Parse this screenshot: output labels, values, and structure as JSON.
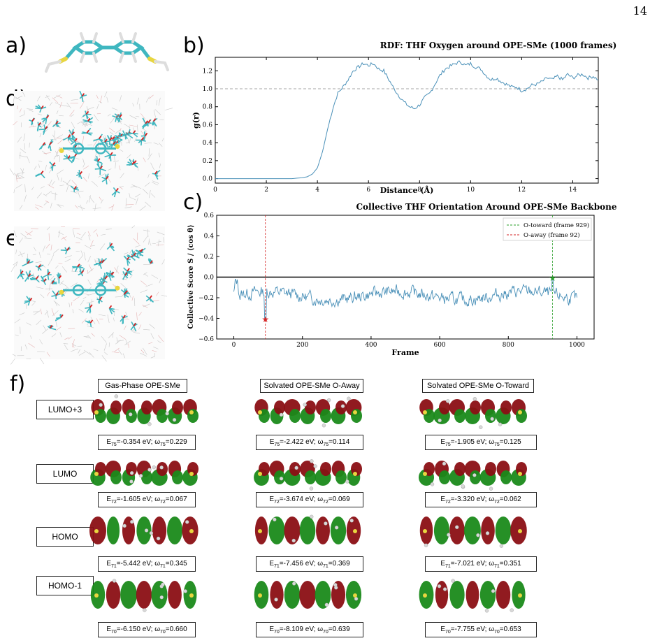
{
  "page_number": "14",
  "panel_letters": {
    "a": "a)",
    "b": "b)",
    "c": "c)",
    "d": "d)",
    "e": "e)",
    "f": "f)"
  },
  "colors": {
    "line": "#4a90b8",
    "reference": "#888888",
    "toward": "#2ca02c",
    "away": "#d62728",
    "carbon": "#3fb7c0",
    "sulfur": "#e8d640",
    "oxygen": "#d62020"
  },
  "chart_data": [
    {
      "type": "line",
      "title": "RDF: THF Oxygen around OPE-SMe (1000 frames)",
      "xlabel": "Distance (Å)",
      "ylabel": "g(r)",
      "xlim": [
        0,
        15
      ],
      "ylim": [
        -0.05,
        1.35
      ],
      "xticks": [
        "0",
        "2",
        "4",
        "6",
        "8",
        "10",
        "12",
        "14"
      ],
      "yticks": [
        "0.0",
        "0.2",
        "0.4",
        "0.6",
        "0.8",
        "1.0",
        "1.2"
      ],
      "reference_line_y": 1.0,
      "grid": false,
      "series": [
        {
          "x": [
            0,
            1,
            2,
            3,
            3.4,
            3.6,
            3.8,
            4.0,
            4.2,
            4.4,
            4.6,
            4.8,
            5.0,
            5.2,
            5.4,
            5.6,
            5.8,
            6.0,
            6.2,
            6.4,
            6.6,
            6.8,
            7.0,
            7.2,
            7.4,
            7.6,
            7.8,
            8.0,
            8.2,
            8.4,
            8.6,
            8.8,
            9.0,
            9.2,
            9.4,
            9.6,
            9.8,
            10.0,
            10.2,
            10.4,
            10.6,
            10.8,
            11.0,
            11.2,
            11.4,
            11.6,
            11.8,
            12.0,
            12.2,
            12.4,
            12.6,
            12.8,
            13.0,
            13.2,
            13.4,
            13.6,
            13.8,
            14.0,
            14.2,
            14.4,
            14.6,
            14.8,
            15.0
          ],
          "y": [
            0,
            0,
            0,
            0,
            0.01,
            0.02,
            0.05,
            0.12,
            0.3,
            0.55,
            0.78,
            0.95,
            1.02,
            1.1,
            1.2,
            1.24,
            1.28,
            1.26,
            1.28,
            1.22,
            1.2,
            1.1,
            1.0,
            0.92,
            0.85,
            0.8,
            0.78,
            0.82,
            0.9,
            0.95,
            1.05,
            1.15,
            1.22,
            1.25,
            1.28,
            1.3,
            1.26,
            1.28,
            1.24,
            1.22,
            1.15,
            1.1,
            1.12,
            1.08,
            1.05,
            1.02,
            1.02,
            0.98,
            1.0,
            1.04,
            1.05,
            1.08,
            1.12,
            1.1,
            1.14,
            1.1,
            1.16,
            1.12,
            1.15,
            1.16,
            1.12,
            1.14,
            1.1
          ]
        }
      ]
    },
    {
      "type": "line",
      "title": "Collective THF Orientation Around OPE-SMe Backbone",
      "xlabel": "Frame",
      "ylabel": "Collective Score S / ⟨cos θ⟩",
      "xlim": [
        -50,
        1050
      ],
      "ylim": [
        -0.6,
        0.6
      ],
      "xticks": [
        "0",
        "200",
        "400",
        "600",
        "800",
        "1000"
      ],
      "yticks": [
        "0.6",
        "0.4",
        "0.2",
        "0.0",
        "−0.2",
        "−0.4",
        "−0.6"
      ],
      "zero_line": true,
      "legend": {
        "position": "top-right",
        "entries": [
          "O-toward (frame 929)",
          "O-away (frame 92)"
        ]
      },
      "markers": {
        "toward": {
          "frame": 929,
          "value": -0.01
        },
        "away": {
          "frame": 92,
          "value": -0.41
        }
      },
      "series_summary": {
        "frames": 1000,
        "mean": -0.18,
        "min": -0.41,
        "max": 0.0
      }
    }
  ],
  "orbitals": {
    "columns": [
      "Gas-Phase OPE-SMe",
      "Solvated OPE-SMe O-Away",
      "Solvated OPE-SMe O-Toward"
    ],
    "rows": [
      {
        "label": "LUMO+3",
        "idx": "75",
        "energies": [
          {
            "E": "-0.354",
            "w": "0.229"
          },
          {
            "E": "-2.422",
            "w": "0.114"
          },
          {
            "E": "-1.905",
            "w": "0.125"
          }
        ]
      },
      {
        "label": "LUMO",
        "idx": "72",
        "energies": [
          {
            "E": "-1.605",
            "w": "0.067"
          },
          {
            "E": "-3.674",
            "w": "0.069"
          },
          {
            "E": "-3.320",
            "w": "0.062"
          }
        ]
      },
      {
        "label": "HOMO",
        "idx": "71",
        "energies": [
          {
            "E": "-5.442",
            "w": "0.345"
          },
          {
            "E": "-7.456",
            "w": "0.369"
          },
          {
            "E": "-7.021",
            "w": "0.351"
          }
        ]
      },
      {
        "label": "HOMO-1",
        "idx": "70",
        "energies": [
          {
            "E": "-6.150",
            "w": "0.660"
          },
          {
            "E": "-8.109",
            "w": "0.639"
          },
          {
            "E": "-7.755",
            "w": "0.653"
          }
        ]
      }
    ]
  }
}
